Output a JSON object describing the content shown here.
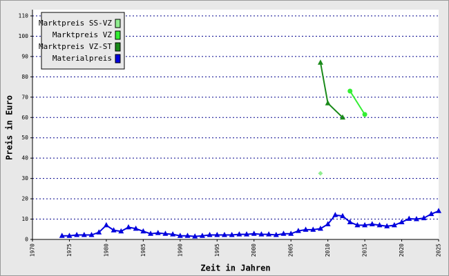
{
  "chart_data": {
    "type": "line",
    "xlabel": "Zeit in Jahren",
    "ylabel": "Preis in Euro",
    "xlim": [
      1970,
      2025
    ],
    "xticks": [
      1970,
      1975,
      1980,
      1985,
      1990,
      1995,
      2000,
      2005,
      2010,
      2015,
      2020,
      2025
    ],
    "ylim": [
      0,
      110
    ],
    "yticks": [
      0,
      10,
      20,
      30,
      40,
      50,
      60,
      70,
      80,
      90,
      100,
      110
    ],
    "grid": true,
    "legend": "upper left",
    "series": [
      {
        "name": "Marktpreis SS-VZ",
        "color": "#90ee90",
        "marker": "diamond",
        "x": [
          2009
        ],
        "values": [
          32.5
        ]
      },
      {
        "name": "Marktpreis VZ",
        "color": "#33ee33",
        "marker": "circle",
        "x": [
          2013,
          2015
        ],
        "values": [
          73,
          61.5
        ]
      },
      {
        "name": "Marktpreis VZ-ST",
        "color": "#1a8a1a",
        "marker": "triangle",
        "x": [
          2009,
          2010,
          2012
        ],
        "values": [
          87,
          67,
          60
        ]
      },
      {
        "name": "Materialpreis",
        "color": "#0000dd",
        "marker": "triangle",
        "x": [
          1974,
          1975,
          1976,
          1977,
          1978,
          1979,
          1980,
          1981,
          1982,
          1983,
          1984,
          1985,
          1986,
          1987,
          1988,
          1989,
          1990,
          1991,
          1992,
          1993,
          1994,
          1995,
          1996,
          1997,
          1998,
          1999,
          2000,
          2001,
          2002,
          2003,
          2004,
          2005,
          2006,
          2007,
          2008,
          2009,
          2010,
          2011,
          2012,
          2013,
          2014,
          2015,
          2016,
          2017,
          2018,
          2019,
          2020,
          2021,
          2022,
          2023,
          2024,
          2025
        ],
        "values": [
          1.8,
          1.8,
          2.2,
          2.2,
          2.2,
          3.5,
          7,
          4.5,
          4,
          6,
          5.3,
          4,
          2.8,
          3.2,
          2.8,
          2.5,
          1.8,
          1.8,
          1.5,
          1.8,
          2.2,
          2.2,
          2.2,
          2.2,
          2.5,
          2.5,
          2.8,
          2.5,
          2.5,
          2.2,
          2.8,
          2.8,
          4.2,
          4.8,
          4.8,
          5.3,
          7.5,
          12,
          11.5,
          8.5,
          7,
          7,
          7.5,
          7,
          6.5,
          7,
          8.5,
          10.2,
          10,
          10.5,
          12.5,
          14
        ]
      }
    ]
  }
}
